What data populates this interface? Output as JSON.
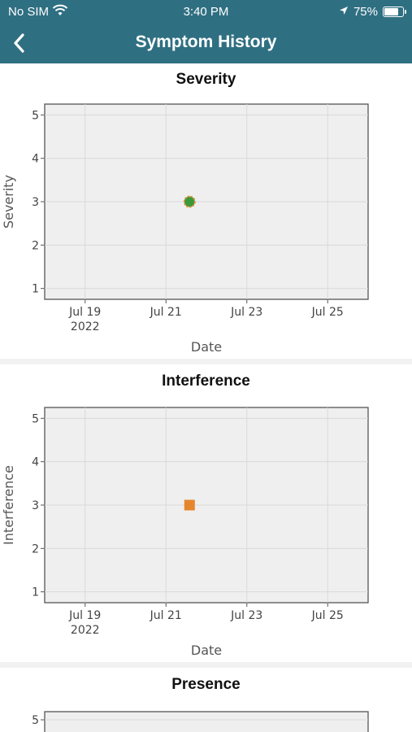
{
  "status_bar": {
    "carrier": "No SIM",
    "time": "3:40 PM",
    "battery": "75%",
    "battery_level": 0.75,
    "icons": [
      "wifi-icon",
      "location-arrow-icon",
      "battery-icon"
    ]
  },
  "nav": {
    "title": "Symptom History",
    "back_icon": "chevron-left-icon"
  },
  "colors": {
    "header": "#2f6f82",
    "plot_bg": "#efefef",
    "grid": "#d9d9d9",
    "severity_marker": "#3a9a3a",
    "severity_marker_outline": "#e6862c",
    "interference_marker": "#e6862c"
  },
  "chart_data": [
    {
      "type": "scatter",
      "title": "Severity",
      "xlabel": "Date",
      "ylabel": "Severity",
      "x_ticks": [
        "Jul 19",
        "Jul 21",
        "Jul 23",
        "Jul 25"
      ],
      "x_tick_sublabel": "2022",
      "y_ticks": [
        1,
        2,
        3,
        4,
        5
      ],
      "xlim": [
        "2022-07-18",
        "2022-07-26"
      ],
      "ylim": [
        0.75,
        5.25
      ],
      "grid": true,
      "points": [
        {
          "x": "2022-07-21T14:00",
          "y": 3
        }
      ],
      "marker": "circle"
    },
    {
      "type": "scatter",
      "title": "Interference",
      "xlabel": "Date",
      "ylabel": "Interference",
      "x_ticks": [
        "Jul 19",
        "Jul 21",
        "Jul 23",
        "Jul 25"
      ],
      "x_tick_sublabel": "2022",
      "y_ticks": [
        1,
        2,
        3,
        4,
        5
      ],
      "xlim": [
        "2022-07-18",
        "2022-07-26"
      ],
      "ylim": [
        0.75,
        5.25
      ],
      "grid": true,
      "points": [
        {
          "x": "2022-07-21T14:00",
          "y": 3
        }
      ],
      "marker": "square"
    },
    {
      "type": "scatter",
      "title": "Presence",
      "y_ticks": [
        5
      ],
      "grid": true,
      "points": []
    }
  ]
}
